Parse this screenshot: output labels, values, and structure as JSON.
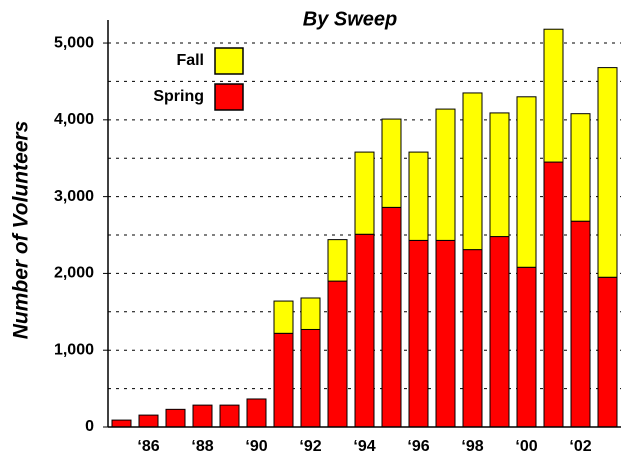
{
  "chart_data": {
    "type": "stacked_bar",
    "title": "By Sweep",
    "y_label": "Number of Volunteers",
    "categories": [
      null,
      "‘86",
      null,
      "‘88",
      null,
      "‘90",
      null,
      "‘92",
      null,
      "‘94",
      null,
      "‘96",
      null,
      "‘98",
      null,
      "‘00",
      null,
      "‘02",
      null
    ],
    "series": [
      {
        "name": "Spring",
        "color": "#ff0000",
        "values": [
          90,
          155,
          230,
          285,
          285,
          365,
          1220,
          1270,
          1900,
          2510,
          2860,
          2430,
          2430,
          2310,
          2480,
          2080,
          3450,
          2680,
          1950
        ]
      },
      {
        "name": "Fall",
        "color": "#ffff00",
        "values": [
          0,
          0,
          0,
          0,
          0,
          0,
          420,
          410,
          540,
          1070,
          1150,
          1150,
          1710,
          2040,
          1610,
          2220,
          1730,
          1400,
          2730
        ]
      }
    ],
    "ylim": [
      0,
      5300
    ],
    "yticks": [
      0,
      {
        "value": 1000,
        "label": "1,000"
      },
      {
        "value": 2000,
        "label": "2,000"
      },
      {
        "value": 3000,
        "label": "3,000"
      },
      {
        "value": 4000,
        "label": "4,000"
      },
      {
        "value": 5000,
        "label": "5,000"
      }
    ],
    "minor_yticks": [
      500,
      1500,
      2500,
      3500,
      4500
    ],
    "grid": true
  }
}
